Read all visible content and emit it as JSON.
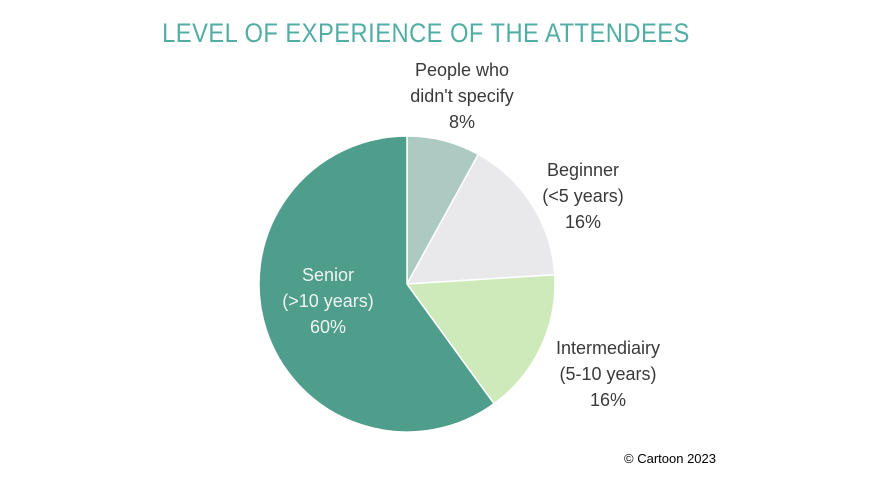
{
  "chart_data": {
    "type": "pie",
    "title": "LEVEL OF EXPERIENCE OF THE ATTENDEES",
    "title_color": "#52ada3",
    "categories": [
      "People who didn't specify",
      "Beginner (<5 years)",
      "Intermediairy (5-10 years)",
      "Senior (>10 years)"
    ],
    "values": [
      8,
      16,
      16,
      60
    ],
    "unit": "%",
    "colors": [
      "#adcac2",
      "#e9e9eb",
      "#cfeaba",
      "#4f9d8b"
    ],
    "slice_border_color": "#ffffff",
    "start_angle_deg": 0,
    "direction": "clockwise",
    "legend_position": "none",
    "labels": [
      {
        "placement": "outside-top",
        "text_color": "#3a3a3a",
        "lines": [
          "People who",
          "didn't specify",
          "8%"
        ]
      },
      {
        "placement": "outside-right",
        "text_color": "#3a3a3a",
        "lines": [
          "Beginner",
          "(<5 years)",
          "16%"
        ]
      },
      {
        "placement": "outside-bottom-right",
        "text_color": "#3a3a3a",
        "lines": [
          "Intermediairy",
          "(5-10 years)",
          "16%"
        ]
      },
      {
        "placement": "inside-left",
        "text_color": "#eff5f2",
        "lines": [
          "Senior",
          "(>10 years)",
          "60%"
        ]
      }
    ]
  },
  "footer": {
    "copyright": "© Cartoon 2023"
  }
}
